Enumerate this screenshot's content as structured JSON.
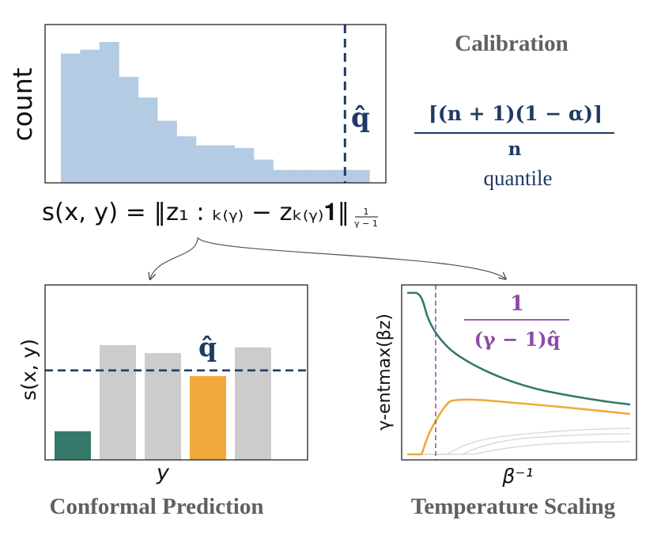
{
  "colors": {
    "hist_fill": "#b3cbe3",
    "navy": "#1f3a64",
    "teal": "#35796a",
    "orange": "#f0a93b",
    "gray_bar": "#cccccc",
    "purple": "#8e4aa8",
    "title_gray": "#606060",
    "thin_gray": "#d6d6d6"
  },
  "calibration_panel": {
    "ylabel": "count",
    "quantile_marker": "q̂",
    "score_formula": "s(x, y) = ‖z₁ : ₖ₍ᵧ₎ − zₖ₍ᵧ₎𝟏‖",
    "score_norm_numerator": "1",
    "score_norm_denominator": "γ − 1",
    "histogram_values": [
      1.0,
      1.03,
      1.09,
      0.82,
      0.66,
      0.48,
      0.36,
      0.29,
      0.29,
      0.27,
      0.18,
      0.1,
      0.1,
      0.1,
      0.1,
      0.1
    ],
    "quantile_position": 0.88
  },
  "calibration_text": {
    "title": "Calibration",
    "formula_numerator": "⌈(n + 1)(1 − α)⌉",
    "formula_denominator": "n",
    "formula_caption": "quantile"
  },
  "conformal_panel": {
    "title": "Conformal Prediction",
    "ylabel": "s(x, y)",
    "xlabel": "y",
    "quantile_marker": "q̂",
    "bar_values": [
      0.25,
      1.0,
      0.93,
      0.73,
      0.98
    ],
    "bar_colors": [
      "#35796a",
      "#cccccc",
      "#cccccc",
      "#f0a93b",
      "#cccccc"
    ],
    "threshold": 0.78
  },
  "temperature_panel": {
    "title": "Temperature Scaling",
    "ylabel": "γ-entmax(βz)",
    "xlabel": "β⁻¹",
    "formula_numerator": "1",
    "formula_denominator": "(γ − 1)q̂",
    "dashed_line_position": 0.13
  }
}
